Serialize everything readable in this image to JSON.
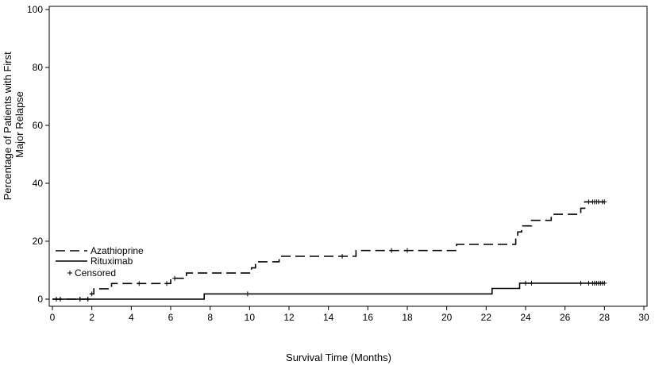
{
  "chart_data": {
    "type": "line",
    "title": "",
    "xlabel": "Survival Time (Months)",
    "ylabel_lines": [
      "Percentage of Patients with First",
      "Major Relapse"
    ],
    "xlim": [
      0,
      30
    ],
    "ylim": [
      0,
      100
    ],
    "xticks": [
      "0",
      "2",
      "4",
      "6",
      "8",
      "10",
      "12",
      "14",
      "16",
      "18",
      "20",
      "22",
      "24",
      "26",
      "28",
      "30"
    ],
    "yticks": [
      "0",
      "20",
      "40",
      "60",
      "80",
      "100"
    ],
    "grid": false,
    "legend_position": "left",
    "censored_label": "Censored",
    "series": [
      {
        "name": "Azathioprine",
        "style": "dashed",
        "color": "#000000",
        "steps": [
          [
            0,
            0
          ],
          [
            1.9,
            0
          ],
          [
            1.9,
            1.8
          ],
          [
            2.1,
            1.8
          ],
          [
            2.1,
            3.6
          ],
          [
            3.0,
            3.6
          ],
          [
            3.0,
            5.4
          ],
          [
            6.0,
            5.4
          ],
          [
            6.0,
            7.2
          ],
          [
            6.8,
            7.2
          ],
          [
            6.8,
            9.0
          ],
          [
            10.1,
            9.0
          ],
          [
            10.1,
            10.8
          ],
          [
            10.3,
            10.8
          ],
          [
            10.3,
            12.9
          ],
          [
            11.5,
            12.9
          ],
          [
            11.5,
            14.8
          ],
          [
            15.4,
            14.8
          ],
          [
            15.4,
            16.8
          ],
          [
            20.5,
            16.8
          ],
          [
            20.5,
            18.9
          ],
          [
            23.5,
            18.9
          ],
          [
            23.5,
            21.0
          ],
          [
            23.6,
            21.0
          ],
          [
            23.6,
            23.2
          ],
          [
            23.8,
            23.2
          ],
          [
            23.8,
            25.3
          ],
          [
            24.3,
            25.3
          ],
          [
            24.3,
            27.2
          ],
          [
            25.3,
            27.2
          ],
          [
            25.3,
            29.3
          ],
          [
            26.8,
            29.3
          ],
          [
            26.8,
            31.4
          ],
          [
            27.0,
            31.4
          ],
          [
            27.0,
            33.6
          ],
          [
            28.0,
            33.6
          ]
        ],
        "censored_x": [
          0.2,
          0.4,
          1.4,
          1.8,
          2.0,
          4.4,
          5.8,
          6.2,
          14.7,
          17.2,
          18.0,
          27.2,
          27.4,
          27.5,
          27.6,
          27.7,
          27.9,
          28.0
        ]
      },
      {
        "name": "Rituximab",
        "style": "solid",
        "color": "#000000",
        "steps": [
          [
            0,
            0
          ],
          [
            7.7,
            0
          ],
          [
            7.7,
            1.8
          ],
          [
            22.3,
            1.8
          ],
          [
            22.3,
            3.7
          ],
          [
            23.7,
            3.7
          ],
          [
            23.7,
            5.5
          ],
          [
            28.0,
            5.5
          ]
        ],
        "censored_x": [
          0.2,
          0.4,
          1.4,
          1.8,
          9.9,
          24.0,
          24.3,
          26.8,
          27.2,
          27.4,
          27.5,
          27.6,
          27.7,
          27.8,
          27.9,
          28.0
        ]
      }
    ]
  }
}
